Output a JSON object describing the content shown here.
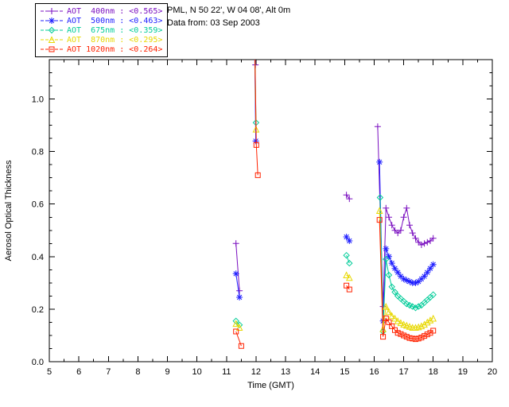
{
  "window": {
    "background": "#ffffff"
  },
  "header": {
    "site_line": "PML, N 50 22', W 04 08', Alt 0m",
    "date_line": "Data from: 03 Sep 2003"
  },
  "legend": {
    "entries": [
      {
        "label": "AOT  400nm : <0.565>",
        "color": "#7a0fc0",
        "marker": "plus"
      },
      {
        "label": "AOT  500nm : <0.463>",
        "color": "#2020ff",
        "marker": "asterisk"
      },
      {
        "label": "AOT  675nm : <0.359>",
        "color": "#00cc99",
        "marker": "diamond"
      },
      {
        "label": "AOT  870nm : <0.295>",
        "color": "#e8d800",
        "marker": "triangle"
      },
      {
        "label": "AOT 1020nm : <0.264>",
        "color": "#ff2200",
        "marker": "square"
      }
    ]
  },
  "chart_data": {
    "type": "line",
    "title": "",
    "xlabel": "Time (GMT)",
    "ylabel": "Aerosol Optical Thickness",
    "xlim": [
      5,
      20
    ],
    "ylim": [
      0,
      1.15
    ],
    "xticks": [
      5,
      6,
      7,
      8,
      9,
      10,
      11,
      12,
      13,
      14,
      15,
      16,
      17,
      18,
      19,
      20
    ],
    "yticks": [
      0,
      0.2,
      0.4,
      0.6,
      0.8,
      1.0
    ],
    "xminor": 0.5,
    "yminor": 0.05,
    "gap_break": 0.25,
    "grid": false,
    "legend_position": "top-left",
    "series": [
      {
        "name": "AOT 400nm",
        "mean": "<0.565>",
        "color": "#7a0fc0",
        "marker": "plus",
        "points": [
          [
            11.32,
            0.45
          ],
          [
            11.44,
            0.27
          ],
          [
            11.92,
            1.45
          ],
          [
            11.98,
            1.13
          ],
          [
            15.06,
            0.635
          ],
          [
            15.16,
            0.62
          ],
          [
            16.12,
            0.895
          ],
          [
            16.3,
            0.21
          ],
          [
            16.4,
            0.585
          ],
          [
            16.5,
            0.55
          ],
          [
            16.6,
            0.52
          ],
          [
            16.7,
            0.5
          ],
          [
            16.8,
            0.49
          ],
          [
            16.9,
            0.5
          ],
          [
            17.0,
            0.55
          ],
          [
            17.1,
            0.585
          ],
          [
            17.2,
            0.52
          ],
          [
            17.3,
            0.49
          ],
          [
            17.4,
            0.47
          ],
          [
            17.5,
            0.455
          ],
          [
            17.6,
            0.445
          ],
          [
            17.7,
            0.45
          ],
          [
            17.8,
            0.455
          ],
          [
            17.9,
            0.46
          ],
          [
            18.0,
            0.47
          ]
        ]
      },
      {
        "name": "AOT 500nm",
        "mean": "<0.463>",
        "color": "#2020ff",
        "marker": "asterisk",
        "points": [
          [
            11.32,
            0.335
          ],
          [
            11.44,
            0.245
          ],
          [
            11.93,
            1.4
          ],
          [
            11.99,
            0.84
          ],
          [
            15.06,
            0.475
          ],
          [
            15.16,
            0.46
          ],
          [
            16.18,
            0.76
          ],
          [
            16.3,
            0.155
          ],
          [
            16.4,
            0.43
          ],
          [
            16.5,
            0.4
          ],
          [
            16.6,
            0.375
          ],
          [
            16.7,
            0.355
          ],
          [
            16.8,
            0.34
          ],
          [
            16.9,
            0.325
          ],
          [
            17.0,
            0.315
          ],
          [
            17.1,
            0.31
          ],
          [
            17.2,
            0.305
          ],
          [
            17.3,
            0.3
          ],
          [
            17.4,
            0.3
          ],
          [
            17.5,
            0.305
          ],
          [
            17.6,
            0.315
          ],
          [
            17.7,
            0.325
          ],
          [
            17.8,
            0.34
          ],
          [
            17.9,
            0.355
          ],
          [
            18.0,
            0.37
          ]
        ]
      },
      {
        "name": "AOT 675nm",
        "mean": "<0.359>",
        "color": "#00cc99",
        "marker": "diamond",
        "points": [
          [
            11.32,
            0.155
          ],
          [
            11.44,
            0.14
          ],
          [
            11.94,
            1.35
          ],
          [
            12.0,
            0.91
          ],
          [
            15.06,
            0.405
          ],
          [
            15.16,
            0.375
          ],
          [
            16.2,
            0.625
          ],
          [
            16.3,
            0.115
          ],
          [
            16.4,
            0.39
          ],
          [
            16.5,
            0.33
          ],
          [
            16.6,
            0.285
          ],
          [
            16.7,
            0.265
          ],
          [
            16.8,
            0.25
          ],
          [
            16.9,
            0.24
          ],
          [
            17.0,
            0.23
          ],
          [
            17.1,
            0.22
          ],
          [
            17.2,
            0.215
          ],
          [
            17.3,
            0.21
          ],
          [
            17.4,
            0.205
          ],
          [
            17.5,
            0.21
          ],
          [
            17.6,
            0.215
          ],
          [
            17.7,
            0.225
          ],
          [
            17.8,
            0.235
          ],
          [
            17.9,
            0.245
          ],
          [
            18.0,
            0.255
          ]
        ]
      },
      {
        "name": "AOT 870nm",
        "mean": "<0.295>",
        "color": "#e8d800",
        "marker": "triangle",
        "points": [
          [
            11.32,
            0.145
          ],
          [
            11.44,
            0.13
          ],
          [
            11.94,
            1.3
          ],
          [
            12.0,
            0.885
          ],
          [
            15.06,
            0.33
          ],
          [
            15.16,
            0.32
          ],
          [
            16.18,
            0.575
          ],
          [
            16.3,
            0.125
          ],
          [
            16.4,
            0.21
          ],
          [
            16.5,
            0.19
          ],
          [
            16.6,
            0.175
          ],
          [
            16.7,
            0.165
          ],
          [
            16.8,
            0.155
          ],
          [
            16.9,
            0.148
          ],
          [
            17.0,
            0.142
          ],
          [
            17.1,
            0.138
          ],
          [
            17.2,
            0.134
          ],
          [
            17.3,
            0.13
          ],
          [
            17.4,
            0.13
          ],
          [
            17.5,
            0.132
          ],
          [
            17.6,
            0.136
          ],
          [
            17.7,
            0.142
          ],
          [
            17.8,
            0.15
          ],
          [
            17.9,
            0.158
          ],
          [
            18.0,
            0.165
          ]
        ]
      },
      {
        "name": "AOT 1020nm",
        "mean": "<0.264>",
        "color": "#ff2200",
        "marker": "square",
        "points": [
          [
            11.32,
            0.115
          ],
          [
            11.5,
            0.06
          ],
          [
            11.95,
            1.25
          ],
          [
            12.01,
            0.825
          ],
          [
            12.06,
            0.71
          ],
          [
            15.06,
            0.29
          ],
          [
            15.16,
            0.275
          ],
          [
            16.18,
            0.54
          ],
          [
            16.3,
            0.095
          ],
          [
            16.4,
            0.165
          ],
          [
            16.5,
            0.15
          ],
          [
            16.6,
            0.135
          ],
          [
            16.7,
            0.12
          ],
          [
            16.8,
            0.11
          ],
          [
            16.9,
            0.105
          ],
          [
            17.0,
            0.1
          ],
          [
            17.1,
            0.095
          ],
          [
            17.2,
            0.09
          ],
          [
            17.3,
            0.088
          ],
          [
            17.4,
            0.086
          ],
          [
            17.5,
            0.088
          ],
          [
            17.6,
            0.092
          ],
          [
            17.7,
            0.098
          ],
          [
            17.8,
            0.104
          ],
          [
            17.9,
            0.11
          ],
          [
            18.0,
            0.118
          ]
        ]
      }
    ]
  }
}
